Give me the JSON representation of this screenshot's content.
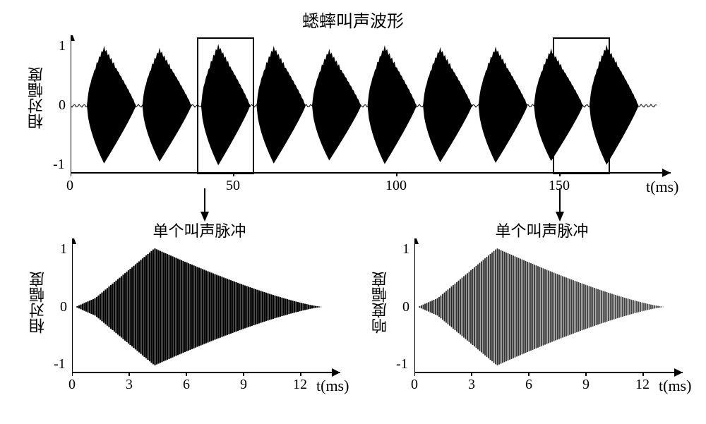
{
  "top_chart": {
    "type": "waveform",
    "title": "蟋蟀叫声波形",
    "ylabel": "相对幅度",
    "xlabel": "t(ms)",
    "ylim": [
      -1,
      1
    ],
    "xlim": [
      0,
      180
    ],
    "yticks": [
      -1,
      0,
      1
    ],
    "xticks": [
      0,
      50,
      100,
      150
    ],
    "title_fontsize": 24,
    "label_fontsize": 22,
    "tick_fontsize": 20,
    "waveform_color": "#000000",
    "background_color": "#ffffff",
    "axis_color": "#000000",
    "pulses": [
      {
        "start": 5,
        "end": 20,
        "amplitude": 0.95
      },
      {
        "start": 22,
        "end": 37,
        "amplitude": 0.92
      },
      {
        "start": 40,
        "end": 55,
        "amplitude": 0.98
      },
      {
        "start": 57,
        "end": 72,
        "amplitude": 0.95
      },
      {
        "start": 74,
        "end": 89,
        "amplitude": 0.9
      },
      {
        "start": 91,
        "end": 106,
        "amplitude": 0.96
      },
      {
        "start": 108,
        "end": 123,
        "amplitude": 0.93
      },
      {
        "start": 125,
        "end": 140,
        "amplitude": 0.94
      },
      {
        "start": 142,
        "end": 157,
        "amplitude": 0.91
      },
      {
        "start": 159,
        "end": 174,
        "amplitude": 0.97
      }
    ],
    "highlight_boxes": [
      {
        "x_start": 39,
        "x_end": 56
      },
      {
        "x_start": 148,
        "x_end": 165
      }
    ]
  },
  "bottom_left_chart": {
    "type": "waveform",
    "title": "单个叫声脉冲",
    "ylabel": "相对幅度",
    "xlabel": "t(ms)",
    "ylim": [
      -1,
      1
    ],
    "xlim": [
      0,
      13
    ],
    "yticks": [
      -1,
      0,
      1
    ],
    "xticks": [
      0,
      3,
      6,
      9,
      12
    ],
    "title_fontsize": 22,
    "label_fontsize": 22,
    "tick_fontsize": 20,
    "waveform_color": "#000000",
    "background_color": "#ffffff"
  },
  "bottom_right_chart": {
    "type": "waveform",
    "title": "单个叫声脉冲",
    "ylabel": "响度幅度",
    "xlabel": "t(ms)",
    "ylim": [
      -1,
      1
    ],
    "xlim": [
      0,
      13
    ],
    "yticks": [
      -1,
      0,
      1
    ],
    "xticks": [
      0,
      3,
      6,
      9,
      12
    ],
    "title_fontsize": 22,
    "label_fontsize": 22,
    "tick_fontsize": 20,
    "waveform_color": "#000000",
    "background_color": "#ffffff"
  }
}
